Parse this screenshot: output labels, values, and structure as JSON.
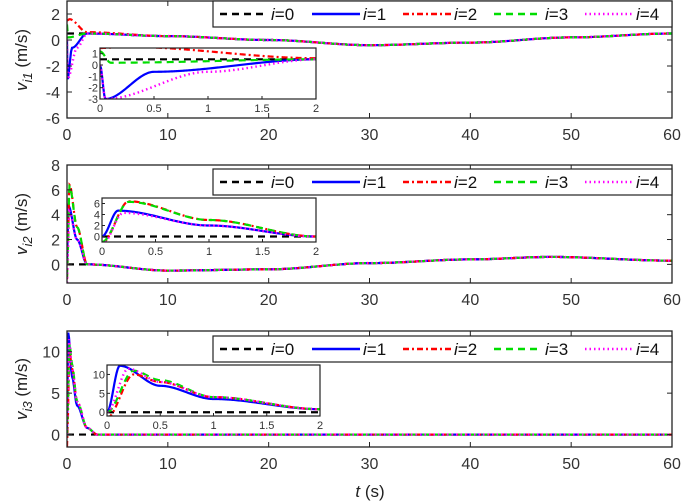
{
  "chart_data": [
    {
      "type": "line",
      "title": "",
      "xlabel": "t (s)",
      "ylabel": "v_i1 (m/s)",
      "xlim": [
        0,
        60
      ],
      "ylim": [
        -6,
        3
      ],
      "xticks": [
        0,
        10,
        20,
        30,
        40,
        50,
        60
      ],
      "yticks": [
        -6,
        -4,
        -2,
        0,
        2
      ],
      "legend": [
        "i=0",
        "i=1",
        "i=2",
        "i=3",
        "i=4"
      ],
      "legend_position": "top-right",
      "series": [
        {
          "name": "i=0",
          "color": "#000000",
          "style": "dashed",
          "x": [
            0,
            2,
            10,
            20,
            30,
            40,
            50,
            60
          ],
          "values": [
            0.5,
            0.5,
            0.3,
            0.0,
            -0.4,
            -0.2,
            0.2,
            0.5
          ]
        },
        {
          "name": "i=1",
          "color": "#0000ff",
          "style": "solid",
          "x": [
            0,
            0.05,
            0.5,
            2,
            10,
            20,
            30,
            40,
            50,
            60
          ],
          "values": [
            0,
            -3,
            -0.6,
            0.5,
            0.3,
            0.0,
            -0.4,
            -0.2,
            0.2,
            0.5
          ]
        },
        {
          "name": "i=2",
          "color": "#ff0000",
          "style": "dashdot",
          "x": [
            0,
            0.25,
            2,
            10,
            20,
            30,
            40,
            50,
            60
          ],
          "values": [
            1.5,
            1.6,
            0.6,
            0.3,
            0.0,
            -0.4,
            -0.2,
            0.2,
            0.5
          ]
        },
        {
          "name": "i=3",
          "color": "#00dd00",
          "style": "dashed",
          "x": [
            0,
            0.1,
            2,
            10,
            20,
            30,
            40,
            50,
            60
          ],
          "values": [
            1.2,
            0.2,
            0.5,
            0.3,
            0.0,
            -0.4,
            -0.2,
            0.2,
            0.5
          ]
        },
        {
          "name": "i=4",
          "color": "#ff00ff",
          "style": "dotted",
          "x": [
            0,
            0.05,
            1,
            2,
            10,
            20,
            30,
            40,
            50,
            60
          ],
          "values": [
            0,
            -3,
            -0.6,
            0.5,
            0.3,
            0.0,
            -0.4,
            -0.2,
            0.2,
            0.5
          ]
        }
      ],
      "inset": {
        "xlim": [
          0,
          2
        ],
        "ylim": [
          -3,
          1.5
        ],
        "xticks": [
          0,
          0.5,
          1,
          1.5,
          2
        ],
        "yticks": [
          -3,
          -2,
          -1,
          0,
          1
        ]
      }
    },
    {
      "type": "line",
      "xlabel": "t (s)",
      "ylabel": "v_i2 (m/s)",
      "xlim": [
        0,
        60
      ],
      "ylim": [
        -1.5,
        8
      ],
      "xticks": [
        0,
        10,
        20,
        30,
        40,
        50,
        60
      ],
      "yticks": [
        0,
        2,
        4,
        6,
        8
      ],
      "legend": [
        "i=0",
        "i=1",
        "i=2",
        "i=3",
        "i=4"
      ],
      "legend_position": "top-right",
      "series": [
        {
          "name": "i=0",
          "color": "#000000",
          "style": "dashed",
          "x": [
            0,
            2,
            10,
            20,
            30,
            40,
            48,
            60
          ],
          "values": [
            0,
            0,
            -0.5,
            -0.4,
            0.1,
            0.4,
            0.6,
            0.3
          ]
        },
        {
          "name": "i=1",
          "color": "#0000ff",
          "style": "solid",
          "x": [
            0,
            0.15,
            1,
            2,
            10,
            20,
            30,
            40,
            48,
            60
          ],
          "values": [
            0,
            4.7,
            2.0,
            0,
            -0.5,
            -0.4,
            0.1,
            0.4,
            0.6,
            0.3
          ]
        },
        {
          "name": "i=2",
          "color": "#ff0000",
          "style": "dashdot",
          "x": [
            0,
            0.25,
            1,
            2,
            10,
            20,
            30,
            40,
            48,
            60
          ],
          "values": [
            -1.2,
            6.4,
            3.0,
            0,
            -0.5,
            -0.4,
            0.1,
            0.4,
            0.6,
            0.3
          ]
        },
        {
          "name": "i=3",
          "color": "#00dd00",
          "style": "dashed",
          "x": [
            0,
            0.25,
            1,
            2,
            10,
            20,
            30,
            40,
            48,
            60
          ],
          "values": [
            -1.0,
            6.3,
            3.0,
            0,
            -0.5,
            -0.4,
            0.1,
            0.4,
            0.6,
            0.3
          ]
        },
        {
          "name": "i=4",
          "color": "#ff00ff",
          "style": "dotted",
          "x": [
            0,
            0.2,
            1,
            2,
            10,
            20,
            30,
            40,
            48,
            60
          ],
          "values": [
            -1.5,
            4.3,
            2.0,
            0,
            -0.5,
            -0.4,
            0.1,
            0.4,
            0.6,
            0.3
          ]
        }
      ],
      "inset": {
        "xlim": [
          0,
          2
        ],
        "ylim": [
          -1,
          7
        ],
        "xticks": [
          0,
          0.5,
          1,
          1.5,
          2
        ],
        "yticks": [
          0,
          2,
          4,
          6
        ]
      }
    },
    {
      "type": "line",
      "xlabel": "t (s)",
      "ylabel": "v_i3 (m/s)",
      "xlim": [
        0,
        60
      ],
      "ylim": [
        -1.5,
        12.5
      ],
      "xticks": [
        0,
        10,
        20,
        30,
        40,
        50,
        60
      ],
      "yticks": [
        0,
        5,
        10
      ],
      "legend": [
        "i=0",
        "i=1",
        "i=2",
        "i=3",
        "i=4"
      ],
      "legend_position": "top-right",
      "series": [
        {
          "name": "i=0",
          "color": "#000000",
          "style": "dashed",
          "x": [
            0,
            3,
            60
          ],
          "values": [
            0,
            0,
            0
          ]
        },
        {
          "name": "i=1",
          "color": "#0000ff",
          "style": "solid",
          "x": [
            0,
            0.12,
            0.5,
            1,
            2,
            3,
            60
          ],
          "values": [
            0,
            12.3,
            7,
            3.5,
            0.8,
            0,
            0
          ]
        },
        {
          "name": "i=2",
          "color": "#ff0000",
          "style": "dashdot",
          "x": [
            0,
            0.25,
            0.5,
            1,
            2,
            3,
            60
          ],
          "values": [
            -1.5,
            10,
            8,
            4,
            0.8,
            0,
            0
          ]
        },
        {
          "name": "i=3",
          "color": "#00dd00",
          "style": "dashed",
          "x": [
            0,
            0.25,
            0.5,
            1,
            2,
            3,
            60
          ],
          "values": [
            0,
            11,
            8.5,
            4,
            0.8,
            0,
            0
          ]
        },
        {
          "name": "i=4",
          "color": "#ff00ff",
          "style": "dotted",
          "x": [
            0,
            0.2,
            0.5,
            1,
            2,
            3,
            60
          ],
          "values": [
            0,
            11.5,
            8,
            4,
            0.8,
            0,
            0
          ]
        }
      ],
      "inset": {
        "xlim": [
          0,
          2
        ],
        "ylim": [
          -1,
          12.5
        ],
        "xticks": [
          0,
          0.5,
          1,
          1.5,
          2
        ],
        "yticks": [
          0,
          5,
          10
        ]
      }
    }
  ],
  "labels": {
    "xlabel_t": "t",
    "xlabel_unit": " (s)",
    "ylabels": [
      {
        "v": "v",
        "sub": "i1",
        "unit": " (m/s)"
      },
      {
        "v": "v",
        "sub": "i2",
        "unit": " (m/s)"
      },
      {
        "v": "v",
        "sub": "i3",
        "unit": " (m/s)"
      }
    ],
    "legend": [
      {
        "i": "i",
        "rest": "=0"
      },
      {
        "i": "i",
        "rest": "=1"
      },
      {
        "i": "i",
        "rest": "=2"
      },
      {
        "i": "i",
        "rest": "=3"
      },
      {
        "i": "i",
        "rest": "=4"
      }
    ]
  }
}
